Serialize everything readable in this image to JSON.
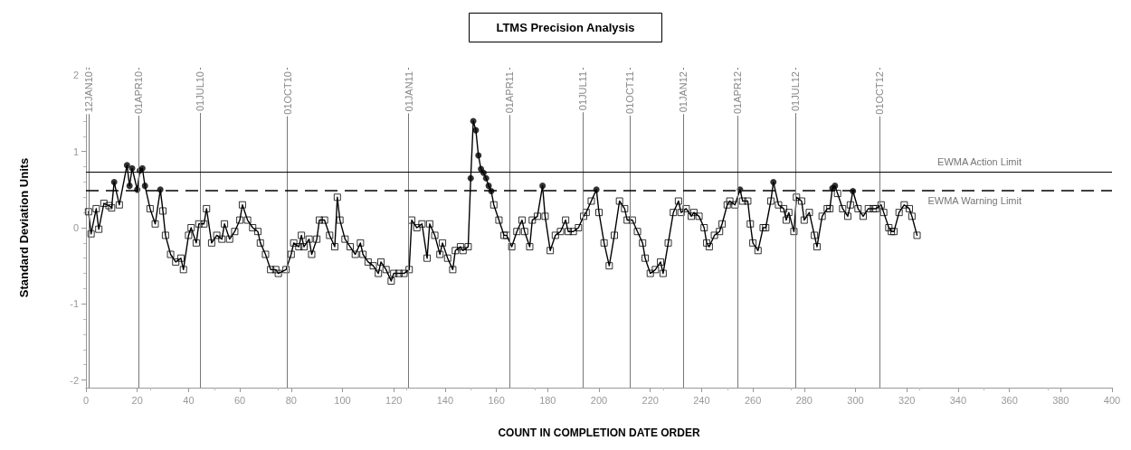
{
  "chart_data": {
    "type": "line",
    "title": "LTMS Precision Analysis",
    "xlabel": "COUNT IN COMPLETION DATE ORDER",
    "ylabel": "Standard Deviation Units",
    "xlim": [
      0,
      400
    ],
    "xticks": [
      0,
      20,
      40,
      60,
      80,
      100,
      120,
      140,
      160,
      180,
      200,
      220,
      240,
      260,
      280,
      300,
      320,
      340,
      360,
      380,
      400
    ],
    "ylim": [
      -2.1,
      2.1
    ],
    "yticks": [
      -2,
      -1,
      0,
      1,
      2
    ],
    "grid": false,
    "series": [
      {
        "marker": "none",
        "line_style": "solid",
        "color": "#000000",
        "x": [
          1,
          2,
          4,
          5,
          7,
          9,
          10,
          11,
          13,
          16,
          17,
          18,
          20,
          21,
          22,
          23,
          25,
          27,
          29,
          30,
          31,
          33,
          35,
          37,
          38,
          40,
          41,
          43,
          44,
          46,
          47,
          49,
          51,
          53,
          54,
          56,
          58,
          60,
          61,
          63,
          65,
          67,
          68,
          70,
          72,
          74,
          75,
          78,
          80,
          81,
          83,
          84,
          85,
          87,
          88,
          90,
          91,
          93,
          95,
          97,
          98,
          99,
          101,
          103,
          105,
          107,
          108,
          110,
          112,
          114,
          115,
          117,
          119,
          120,
          122,
          124,
          126,
          127,
          129,
          131,
          133,
          134,
          136,
          138,
          139,
          141,
          143,
          144,
          146,
          147,
          149,
          150,
          151,
          152,
          153,
          154,
          155,
          156,
          157,
          158,
          159,
          161,
          163,
          164,
          166,
          168,
          170,
          171,
          173,
          174,
          176,
          178,
          179,
          181,
          183,
          185,
          187,
          188,
          190,
          192,
          194,
          195,
          197,
          199,
          200,
          202,
          204,
          206,
          208,
          210,
          211,
          213,
          215,
          217,
          218,
          220,
          222,
          224,
          225,
          227,
          229,
          231,
          232,
          234,
          236,
          237,
          239,
          241,
          242,
          243,
          245,
          247,
          248,
          250,
          251,
          253,
          255,
          256,
          258,
          259,
          260,
          262,
          264,
          265,
          267,
          268,
          270,
          272,
          273,
          274,
          276,
          277,
          279,
          280,
          282,
          284,
          285,
          287,
          289,
          290,
          291,
          292,
          293,
          295,
          297,
          298,
          299,
          301,
          303,
          305,
          307,
          308,
          310,
          311,
          313,
          314,
          315,
          317,
          319,
          321,
          322,
          324
        ],
        "values": [
          0.21,
          -0.08,
          0.25,
          -0.02,
          0.32,
          0.29,
          0.26,
          0.6,
          0.3,
          0.82,
          0.55,
          0.78,
          0.5,
          0.75,
          0.78,
          0.55,
          0.25,
          0.05,
          0.5,
          0.22,
          -0.1,
          -0.35,
          -0.45,
          -0.4,
          -0.55,
          -0.1,
          0,
          -0.2,
          0.05,
          0.05,
          0.25,
          -0.2,
          -0.1,
          -0.15,
          0.05,
          -0.15,
          -0.05,
          0.1,
          0.3,
          0.1,
          0,
          -0.05,
          -0.2,
          -0.35,
          -0.55,
          -0.55,
          -0.6,
          -0.55,
          -0.35,
          -0.2,
          -0.25,
          -0.1,
          -0.25,
          -0.15,
          -0.35,
          -0.15,
          0.1,
          0.1,
          -0.1,
          -0.25,
          0.4,
          0.1,
          -0.15,
          -0.25,
          -0.35,
          -0.2,
          -0.35,
          -0.45,
          -0.5,
          -0.6,
          -0.45,
          -0.55,
          -0.7,
          -0.6,
          -0.6,
          -0.6,
          -0.55,
          0.1,
          0,
          0.05,
          -0.4,
          0.05,
          -0.1,
          -0.35,
          -0.2,
          -0.4,
          -0.55,
          -0.3,
          -0.25,
          -0.3,
          -0.25,
          0.65,
          1.4,
          1.28,
          0.95,
          0.77,
          0.72,
          0.65,
          0.55,
          0.48,
          0.3,
          0.1,
          -0.1,
          -0.1,
          -0.25,
          -0.05,
          0.1,
          -0.05,
          -0.25,
          0.1,
          0.15,
          0.55,
          0.15,
          -0.3,
          -0.1,
          -0.05,
          0.1,
          -0.05,
          -0.05,
          0,
          0.15,
          0.2,
          0.35,
          0.5,
          0.2,
          -0.2,
          -0.5,
          -0.1,
          0.35,
          0.25,
          0.1,
          0.1,
          -0.05,
          -0.2,
          -0.4,
          -0.6,
          -0.55,
          -0.45,
          -0.6,
          -0.2,
          0.2,
          0.35,
          0.2,
          0.25,
          0.15,
          0.2,
          0.15,
          0,
          -0.2,
          -0.25,
          -0.1,
          -0.05,
          0.05,
          0.3,
          0.35,
          0.3,
          0.5,
          0.35,
          0.35,
          0.05,
          -0.2,
          -0.3,
          0,
          0,
          0.35,
          0.6,
          0.3,
          0.25,
          0.1,
          0.2,
          -0.05,
          0.4,
          0.35,
          0.1,
          0.2,
          -0.1,
          -0.25,
          0.15,
          0.25,
          0.25,
          0.52,
          0.55,
          0.45,
          0.25,
          0.15,
          0.3,
          0.48,
          0.25,
          0.15,
          0.25,
          0.25,
          0.25,
          0.3,
          0.2,
          0,
          -0.05,
          -0.05,
          0.2,
          0.3,
          0.25,
          0.15,
          -0.1
        ]
      },
      {
        "type": "scatter",
        "marker": "square",
        "color": "#000000",
        "x": [
          1,
          2,
          4,
          5,
          7,
          9,
          10,
          13,
          25,
          27,
          30,
          31,
          33,
          35,
          37,
          38,
          40,
          41,
          43,
          44,
          46,
          47,
          49,
          51,
          53,
          54,
          56,
          58,
          60,
          61,
          63,
          65,
          67,
          68,
          70,
          72,
          74,
          75,
          78,
          80,
          81,
          83,
          84,
          85,
          87,
          88,
          90,
          91,
          93,
          95,
          97,
          98,
          99,
          101,
          103,
          105,
          107,
          108,
          110,
          112,
          114,
          115,
          117,
          119,
          120,
          122,
          124,
          126,
          127,
          129,
          131,
          133,
          134,
          136,
          138,
          139,
          141,
          143,
          144,
          146,
          147,
          149,
          159,
          161,
          163,
          164,
          166,
          168,
          170,
          171,
          173,
          174,
          176,
          179,
          181,
          183,
          185,
          187,
          188,
          190,
          192,
          194,
          195,
          197,
          200,
          202,
          204,
          206,
          208,
          210,
          211,
          213,
          215,
          217,
          218,
          220,
          222,
          224,
          225,
          227,
          229,
          231,
          232,
          234,
          236,
          237,
          239,
          241,
          242,
          243,
          245,
          247,
          248,
          250,
          251,
          253,
          256,
          258,
          259,
          260,
          262,
          264,
          265,
          267,
          270,
          272,
          273,
          274,
          276,
          277,
          279,
          280,
          282,
          284,
          285,
          287,
          289,
          290,
          293,
          295,
          297,
          298,
          301,
          303,
          305,
          307,
          308,
          310,
          311,
          313,
          314,
          315,
          317,
          319,
          321,
          322,
          324
        ],
        "values": [
          0.21,
          -0.08,
          0.25,
          -0.02,
          0.32,
          0.29,
          0.26,
          0.3,
          0.25,
          0.05,
          0.22,
          -0.1,
          -0.35,
          -0.45,
          -0.4,
          -0.55,
          -0.1,
          0,
          -0.2,
          0.05,
          0.05,
          0.25,
          -0.2,
          -0.1,
          -0.15,
          0.05,
          -0.15,
          -0.05,
          0.1,
          0.3,
          0.1,
          0,
          -0.05,
          -0.2,
          -0.35,
          -0.55,
          -0.55,
          -0.6,
          -0.55,
          -0.35,
          -0.2,
          -0.25,
          -0.1,
          -0.25,
          -0.15,
          -0.35,
          -0.15,
          0.1,
          0.1,
          -0.1,
          -0.25,
          0.4,
          0.1,
          -0.15,
          -0.25,
          -0.35,
          -0.2,
          -0.35,
          -0.45,
          -0.5,
          -0.6,
          -0.45,
          -0.55,
          -0.7,
          -0.6,
          -0.6,
          -0.6,
          -0.55,
          0.1,
          0,
          0.05,
          -0.4,
          0.05,
          -0.1,
          -0.35,
          -0.2,
          -0.4,
          -0.55,
          -0.3,
          -0.25,
          -0.3,
          -0.25,
          0.3,
          0.1,
          -0.1,
          -0.1,
          -0.25,
          -0.05,
          0.1,
          -0.05,
          -0.25,
          0.1,
          0.15,
          0.15,
          -0.3,
          -0.1,
          -0.05,
          0.1,
          -0.05,
          -0.05,
          0,
          0.15,
          0.2,
          0.35,
          0.2,
          -0.2,
          -0.5,
          -0.1,
          0.35,
          0.25,
          0.1,
          0.1,
          -0.05,
          -0.2,
          -0.4,
          -0.6,
          -0.55,
          -0.45,
          -0.6,
          -0.2,
          0.2,
          0.35,
          0.2,
          0.25,
          0.15,
          0.2,
          0.15,
          0,
          -0.2,
          -0.25,
          -0.1,
          -0.05,
          0.05,
          0.3,
          0.35,
          0.3,
          0.35,
          0.35,
          0.05,
          -0.2,
          -0.3,
          0,
          0,
          0.35,
          0.3,
          0.25,
          0.1,
          0.2,
          -0.05,
          0.4,
          0.35,
          0.1,
          0.2,
          -0.1,
          -0.25,
          0.15,
          0.25,
          0.25,
          0.45,
          0.25,
          0.15,
          0.3,
          0.25,
          0.15,
          0.25,
          0.25,
          0.25,
          0.3,
          0.2,
          0,
          -0.05,
          -0.05,
          0.2,
          0.3,
          0.25,
          0.15,
          -0.1
        ]
      },
      {
        "type": "scatter",
        "marker": "circle",
        "color": "#000000",
        "x": [
          11,
          16,
          17,
          18,
          20,
          21,
          22,
          23,
          29,
          150,
          151,
          152,
          153,
          154,
          155,
          156,
          157,
          158,
          178,
          199,
          255,
          268,
          291,
          292,
          299
        ],
        "values": [
          0.6,
          0.82,
          0.55,
          0.78,
          0.5,
          0.75,
          0.78,
          0.55,
          0.5,
          0.65,
          1.4,
          1.28,
          0.95,
          0.77,
          0.72,
          0.65,
          0.55,
          0.48,
          0.55,
          0.5,
          0.5,
          0.6,
          0.52,
          0.55,
          0.48
        ]
      }
    ],
    "ref_lines": [
      {
        "axis": "y",
        "value": 0.73,
        "label": "EWMA Action Limit",
        "line_style": "solid",
        "color": "#000000"
      },
      {
        "axis": "y",
        "value": 0.49,
        "label": "EWMA Warning Limit",
        "line_style": "dashed",
        "color": "#000000"
      },
      {
        "axis": "x",
        "value": 1,
        "label": "12JAN10",
        "color": "#777777"
      },
      {
        "axis": "x",
        "value": 20.6,
        "label": "01APR10",
        "color": "#777777"
      },
      {
        "axis": "x",
        "value": 44.4,
        "label": "01JUL10",
        "color": "#777777"
      },
      {
        "axis": "x",
        "value": 78.5,
        "label": "01OCT10",
        "color": "#777777"
      },
      {
        "axis": "x",
        "value": 125.8,
        "label": "01JAN11",
        "color": "#777777"
      },
      {
        "axis": "x",
        "value": 165,
        "label": "01APR11",
        "color": "#777777"
      },
      {
        "axis": "x",
        "value": 193.7,
        "label": "01JUL11",
        "color": "#777777"
      },
      {
        "axis": "x",
        "value": 212,
        "label": "01OCT11",
        "color": "#777777"
      },
      {
        "axis": "x",
        "value": 232.8,
        "label": "01JAN12",
        "color": "#777777"
      },
      {
        "axis": "x",
        "value": 254,
        "label": "01APR12",
        "color": "#777777"
      },
      {
        "axis": "x",
        "value": 276.6,
        "label": "01JUL12",
        "color": "#777777"
      },
      {
        "axis": "x",
        "value": 309.4,
        "label": "01OCT12",
        "color": "#777777"
      }
    ]
  }
}
